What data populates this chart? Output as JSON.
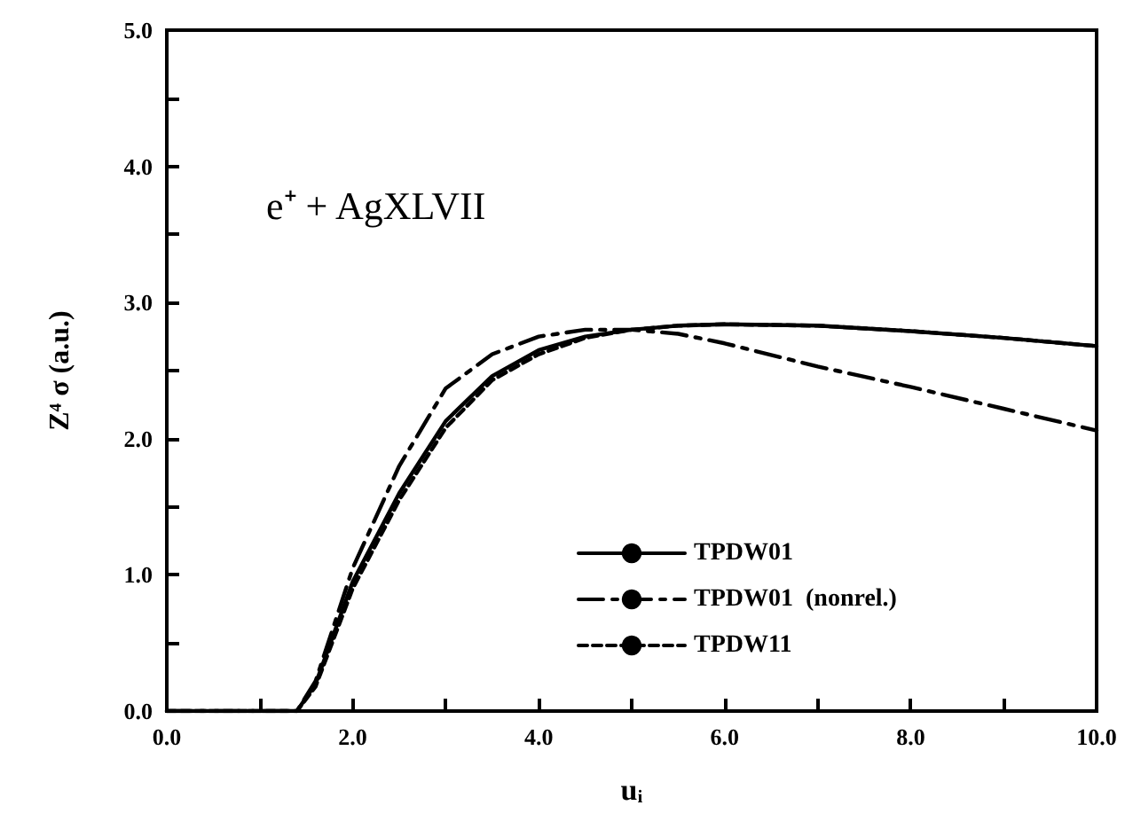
{
  "chart_data": {
    "type": "line",
    "xlabel": "uᵢ",
    "ylabel": "Z⁴ σ (a.u.)",
    "annotations": [
      "e⁺ + AgXLVII"
    ],
    "xlim": [
      0,
      10
    ],
    "ylim": [
      0,
      5
    ],
    "xticks": [
      {
        "value": 0,
        "label": "0.0"
      },
      {
        "value": 1,
        "label": null
      },
      {
        "value": 2,
        "label": "2.0"
      },
      {
        "value": 3,
        "label": null
      },
      {
        "value": 4,
        "label": "4.0"
      },
      {
        "value": 5,
        "label": null
      },
      {
        "value": 6,
        "label": "6.0"
      },
      {
        "value": 7,
        "label": null
      },
      {
        "value": 8,
        "label": "8.0"
      },
      {
        "value": 9,
        "label": null
      },
      {
        "value": 10,
        "label": "10.0"
      }
    ],
    "yticks": [
      {
        "value": 0,
        "label": "0.0"
      },
      {
        "value": 0.5,
        "label": null
      },
      {
        "value": 1,
        "label": "1.0"
      },
      {
        "value": 1.5,
        "label": null
      },
      {
        "value": 2,
        "label": "2.0"
      },
      {
        "value": 2.5,
        "label": null
      },
      {
        "value": 3,
        "label": "3.0"
      },
      {
        "value": 3.5,
        "label": null
      },
      {
        "value": 4,
        "label": "4.0"
      },
      {
        "value": 4.5,
        "label": null
      },
      {
        "value": 5,
        "label": "5.0"
      }
    ],
    "grid": false,
    "legend": "right",
    "marker": "none",
    "x": [
      0,
      1.4,
      1.6,
      2.0,
      2.5,
      3.0,
      3.5,
      4.0,
      4.5,
      5.0,
      5.5,
      6.0,
      7.0,
      8.0,
      9.0,
      10.0
    ],
    "series": [
      {
        "name": "TPDW01",
        "color": "#000000",
        "line_style": "solid",
        "values": [
          0,
          0,
          0.2,
          0.95,
          1.6,
          2.13,
          2.46,
          2.65,
          2.75,
          2.8,
          2.83,
          2.84,
          2.83,
          2.79,
          2.74,
          2.68
        ]
      },
      {
        "name": "TPDW01  (nonrel.)",
        "color": "#000000",
        "line_style": "dashed",
        "values": [
          0,
          0,
          0.22,
          1.05,
          1.8,
          2.37,
          2.62,
          2.75,
          2.8,
          2.8,
          2.77,
          2.7,
          2.53,
          2.38,
          2.22,
          2.06
        ]
      },
      {
        "name": "TPDW11",
        "color": "#000000",
        "line_style": "dotted",
        "values": [
          0,
          0,
          0.18,
          0.9,
          1.55,
          2.08,
          2.43,
          2.62,
          2.74,
          2.8,
          2.83,
          2.84,
          2.83,
          2.79,
          2.74,
          2.68
        ]
      }
    ]
  }
}
